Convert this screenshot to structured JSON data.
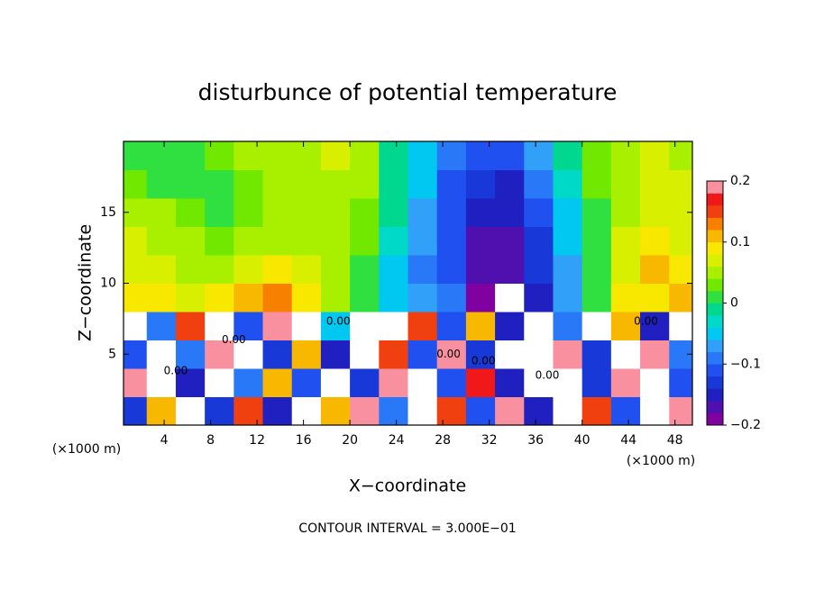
{
  "chart_data": {
    "type": "heatmap",
    "title": "disturbunce of potential temperature",
    "xlabel": "X−coordinate",
    "ylabel": "Z−coordinate",
    "x_unit": "(×1000 m)",
    "note": "CONTOUR INTERVAL = 3.000E−01",
    "xlim": [
      0.5,
      49.5
    ],
    "ylim": [
      0,
      20
    ],
    "xticks": [
      4,
      8,
      12,
      16,
      20,
      24,
      28,
      32,
      36,
      40,
      44,
      48
    ],
    "yticks": [
      5,
      10,
      15
    ],
    "x": [
      1.25,
      3.75,
      6.25,
      8.75,
      11.25,
      13.75,
      16.25,
      18.75,
      21.25,
      23.75,
      26.25,
      28.75,
      31.25,
      33.75,
      36.25,
      38.75,
      41.25,
      43.75,
      46.25,
      48.75
    ],
    "y": [
      1,
      3,
      5,
      7,
      9,
      11,
      13,
      15,
      17,
      19
    ],
    "z": [
      [
        -0.14,
        0.1,
        0.25,
        -0.13,
        0.15,
        -0.16,
        0.25,
        0.12,
        0.2,
        -0.1,
        0.25,
        0.15,
        -0.12,
        0.2,
        -0.16,
        0.25,
        0.14,
        -0.12,
        0.25,
        0.18
      ],
      [
        0.18,
        0.25,
        -0.15,
        0.25,
        -0.1,
        0.1,
        -0.12,
        0.25,
        -0.14,
        0.2,
        0.25,
        -0.12,
        0.16,
        -0.15,
        0.25,
        0.25,
        -0.14,
        0.2,
        0.25,
        -0.12
      ],
      [
        -0.12,
        0.25,
        -0.1,
        0.2,
        0.25,
        -0.14,
        0.12,
        -0.15,
        0.25,
        0.15,
        -0.12,
        0.18,
        -0.14,
        0.25,
        0.25,
        0.18,
        -0.13,
        0.25,
        0.2,
        -0.1
      ],
      [
        0.25,
        -0.1,
        0.15,
        0.25,
        -0.12,
        0.18,
        0.25,
        -0.05,
        0.25,
        0.25,
        0.15,
        -0.12,
        0.1,
        -0.15,
        0.25,
        -0.1,
        0.25,
        0.12,
        -0.15,
        0.25
      ],
      [
        0.09,
        0.08,
        0.07,
        0.08,
        0.11,
        0.13,
        0.08,
        0.05,
        0.01,
        -0.05,
        -0.08,
        -0.1,
        -0.19,
        0.25,
        -0.16,
        -0.08,
        0.02,
        0.08,
        0.09,
        0.1
      ],
      [
        0.07,
        0.06,
        0.05,
        0.05,
        0.07,
        0.09,
        0.06,
        0.05,
        0.02,
        -0.04,
        -0.09,
        -0.12,
        -0.18,
        -0.18,
        -0.14,
        -0.07,
        0.02,
        0.07,
        0.1,
        0.08
      ],
      [
        0.06,
        0.05,
        0.04,
        0.03,
        0.04,
        0.04,
        0.05,
        0.05,
        0.03,
        -0.03,
        -0.08,
        -0.12,
        -0.17,
        -0.17,
        -0.14,
        -0.06,
        0.02,
        0.06,
        0.08,
        0.07
      ],
      [
        0.05,
        0.04,
        0.03,
        0.02,
        0.03,
        0.04,
        0.05,
        0.05,
        0.03,
        -0.02,
        -0.07,
        -0.12,
        -0.16,
        -0.16,
        -0.12,
        -0.04,
        0.02,
        0.05,
        0.07,
        0.06
      ],
      [
        0.03,
        0.01,
        0.02,
        0.02,
        0.03,
        0.04,
        0.05,
        0.05,
        0.04,
        -0.01,
        -0.06,
        -0.11,
        -0.14,
        -0.15,
        -0.1,
        -0.03,
        0.03,
        0.05,
        0.07,
        0.06
      ],
      [
        0.02,
        0.0,
        0.01,
        0.03,
        0.05,
        0.05,
        0.04,
        0.06,
        0.05,
        -0.01,
        -0.06,
        -0.09,
        -0.12,
        -0.12,
        -0.08,
        -0.02,
        0.03,
        0.05,
        0.06,
        0.05
      ]
    ],
    "clim": [
      -0.2,
      0.2
    ],
    "colors": [
      "#8000a0",
      "#5010b0",
      "#2020c0",
      "#1838d8",
      "#2050f0",
      "#2878f8",
      "#30a0f8",
      "#00c8f0",
      "#00d8c8",
      "#00d890",
      "#30e040",
      "#70e800",
      "#a8f000",
      "#d8f000",
      "#f8e800",
      "#f8b800",
      "#f88000",
      "#f04010",
      "#f01818",
      "#f890a0"
    ],
    "over_color": "#ffffff",
    "cbar_ticks": [
      {
        "value": -0.2,
        "label": "−0.2"
      },
      {
        "value": -0.1,
        "label": "−0.1"
      },
      0,
      0.1,
      0.2
    ],
    "contour_labels": [
      {
        "text": "0.00",
        "x": 19,
        "z": 7.3
      },
      {
        "text": "0.00",
        "x": 45.5,
        "z": 7.3
      },
      {
        "text": "0.00",
        "x": 28.5,
        "z": 5
      },
      {
        "text": "0.00",
        "x": 31.5,
        "z": 4.5
      },
      {
        "text": "0.00",
        "x": 37,
        "z": 3.5
      },
      {
        "text": "0.00",
        "x": 5,
        "z": 3.8
      },
      {
        "text": "0.00",
        "x": 10,
        "z": 6
      }
    ]
  }
}
